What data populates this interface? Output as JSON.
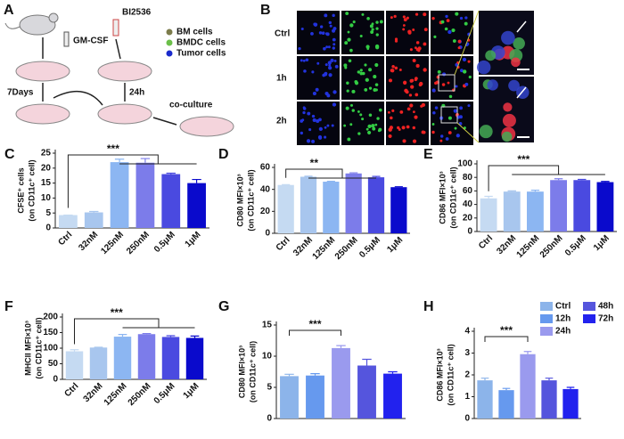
{
  "panel_a": {
    "label": "A",
    "gm_csf": "GM-CSF",
    "bi2536": "BI2536",
    "legend": [
      "BM cells",
      "BMDC cells",
      "Tumor cells"
    ],
    "days": "7Days",
    "hours": "24h",
    "coculture": "co-culture"
  },
  "panel_b": {
    "label": "B",
    "rows": [
      "Ctrl",
      "1h",
      "2h"
    ]
  },
  "chart_data": [
    {
      "type": "bar",
      "panel": "C",
      "ylabel": [
        "CFSE⁺ cells",
        "(on CD11c⁺ cell)"
      ],
      "categories": [
        "Ctrl",
        "32nM",
        "125nM",
        "250nM",
        "0.5μM",
        "1μM"
      ],
      "values": [
        4.3,
        5.2,
        22,
        21.8,
        18,
        15
      ],
      "errors": [
        0,
        0.3,
        1,
        1.4,
        0.3,
        1.2
      ],
      "colors": [
        "#c5daf2",
        "#a8c6ee",
        "#8cb6f2",
        "#7c7cea",
        "#4a4ae0",
        "#0a0acc"
      ],
      "ylim": [
        0,
        25
      ],
      "yticks": [
        0,
        5,
        10,
        15,
        20,
        25
      ],
      "annotation": "***"
    },
    {
      "type": "bar",
      "panel": "D",
      "ylabel": [
        "CD80 MFI×10³",
        "(on CD11c⁺ cell)"
      ],
      "categories": [
        "Ctrl",
        "32nM",
        "125nM",
        "250nM",
        "0.5μM",
        "1μM"
      ],
      "values": [
        44,
        51.5,
        47,
        54.5,
        51,
        42
      ],
      "errors": [
        0.3,
        0.5,
        0.4,
        0.6,
        0.8,
        0.4
      ],
      "colors": [
        "#c5daf2",
        "#a8c6ee",
        "#8cb6f2",
        "#7c7cea",
        "#4a4ae0",
        "#0a0acc"
      ],
      "ylim": [
        0,
        60
      ],
      "yticks": [
        0,
        20,
        40,
        60
      ],
      "annotation": "**"
    },
    {
      "type": "bar",
      "panel": "E",
      "ylabel": [
        "CD86 MFI×10³",
        "(on CD11c⁺ cell)"
      ],
      "categories": [
        "Ctrl",
        "32nM",
        "125nM",
        "250nM",
        "0.5μM",
        "1μM"
      ],
      "values": [
        49,
        59,
        59,
        76,
        76,
        73
      ],
      "errors": [
        3,
        1,
        2,
        2,
        1,
        1
      ],
      "colors": [
        "#c5daf2",
        "#a8c6ee",
        "#8cb6f2",
        "#7c7cea",
        "#4a4ae0",
        "#0a0acc"
      ],
      "ylim": [
        0,
        100
      ],
      "yticks": [
        0,
        20,
        40,
        60,
        80,
        100
      ],
      "annotation": "***"
    },
    {
      "type": "bar",
      "panel": "F",
      "ylabel": [
        "MHCII MFI×10³",
        "(on CD11c⁺ cell)"
      ],
      "categories": [
        "Ctrl",
        "32nM",
        "125nM",
        "250nM",
        "0.5μM",
        "1μM"
      ],
      "values": [
        90,
        102,
        137,
        145,
        136,
        133
      ],
      "errors": [
        5,
        1,
        7,
        2,
        4,
        6
      ],
      "colors": [
        "#c5daf2",
        "#a8c6ee",
        "#8cb6f2",
        "#7c7cea",
        "#4a4ae0",
        "#0a0acc"
      ],
      "ylim": [
        0,
        200
      ],
      "yticks": [
        0,
        50,
        100,
        150,
        200
      ],
      "annotation": "***"
    },
    {
      "type": "bar",
      "panel": "G",
      "ylabel": [
        "CD80 MFI×10³",
        "(on CD11c⁺ cell)"
      ],
      "values": [
        6.8,
        6.9,
        11.3,
        8.5,
        7.2
      ],
      "errors": [
        0.3,
        0.3,
        0.4,
        1,
        0.3
      ],
      "colors": [
        "#8cb4ea",
        "#6699ee",
        "#9a9aee",
        "#5555dd",
        "#2222ee"
      ],
      "ylim": [
        0,
        15
      ],
      "yticks": [
        0,
        5,
        10,
        15
      ],
      "annotation": "***"
    },
    {
      "type": "bar",
      "panel": "H",
      "ylabel": [
        "CD86 MFI×10³",
        "(on CD11c⁺ cell)"
      ],
      "values": [
        1.75,
        1.3,
        2.95,
        1.75,
        1.35
      ],
      "errors": [
        0.1,
        0.08,
        0.12,
        0.1,
        0.08
      ],
      "colors": [
        "#8cb4ea",
        "#6699ee",
        "#9a9aee",
        "#5555dd",
        "#2222ee"
      ],
      "ylim": [
        0,
        4
      ],
      "yticks": [
        0,
        1,
        2,
        3,
        4
      ],
      "annotation": "***",
      "legend": [
        "Ctrl",
        "12h",
        "24h",
        "48h",
        "72h"
      ]
    }
  ]
}
